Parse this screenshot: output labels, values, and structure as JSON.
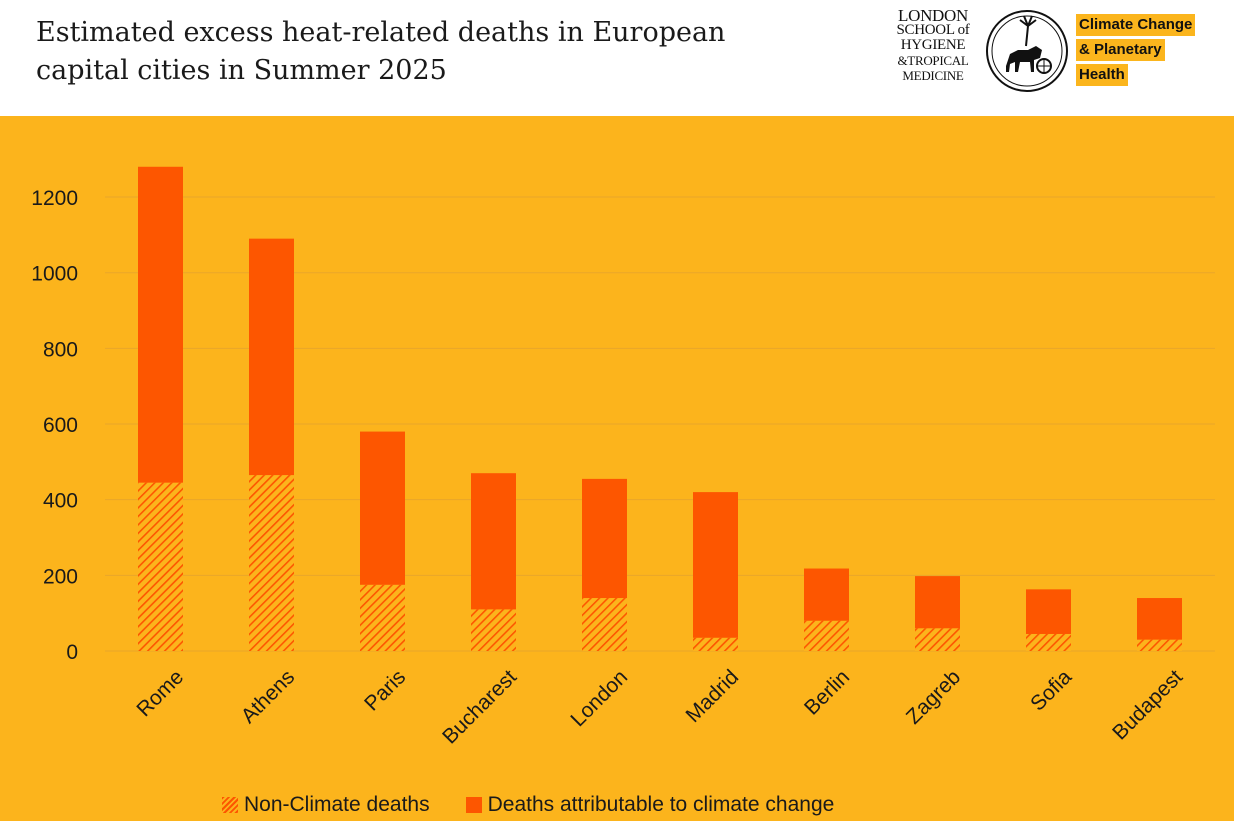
{
  "title_lines": [
    "Estimated excess heat-related deaths in European",
    "capital cities in Summer 2025"
  ],
  "logo": {
    "lines": [
      "LONDON",
      "SCHOOL of",
      "HYGIENE",
      "&TROPICAL",
      "MEDICINE"
    ],
    "seal_icon": "seal-icon"
  },
  "badge": {
    "lines": [
      "Climate Change",
      "& Planetary",
      "Health"
    ]
  },
  "colors": {
    "background": "#fcb41c",
    "climate": "#fd5600",
    "non_climate_hatch": "#fd5600",
    "grid": "#e9a62a"
  },
  "chart_data": {
    "type": "bar",
    "stacked": true,
    "categories": [
      "Rome",
      "Athens",
      "Paris",
      "Bucharest",
      "London",
      "Madrid",
      "Berlin",
      "Zagreb",
      "Sofia",
      "Budapest"
    ],
    "series": [
      {
        "name": "Non-Climate deaths",
        "values": [
          445,
          465,
          175,
          110,
          140,
          35,
          80,
          60,
          45,
          30
        ]
      },
      {
        "name": "Deaths attributable to climate change",
        "values": [
          835,
          625,
          405,
          360,
          315,
          385,
          138,
          138,
          118,
          110
        ]
      }
    ],
    "yticks": [
      0,
      200,
      400,
      600,
      800,
      1000,
      1200
    ],
    "ylim": [
      0,
      1300
    ],
    "grid": true,
    "legend_position": "bottom"
  }
}
